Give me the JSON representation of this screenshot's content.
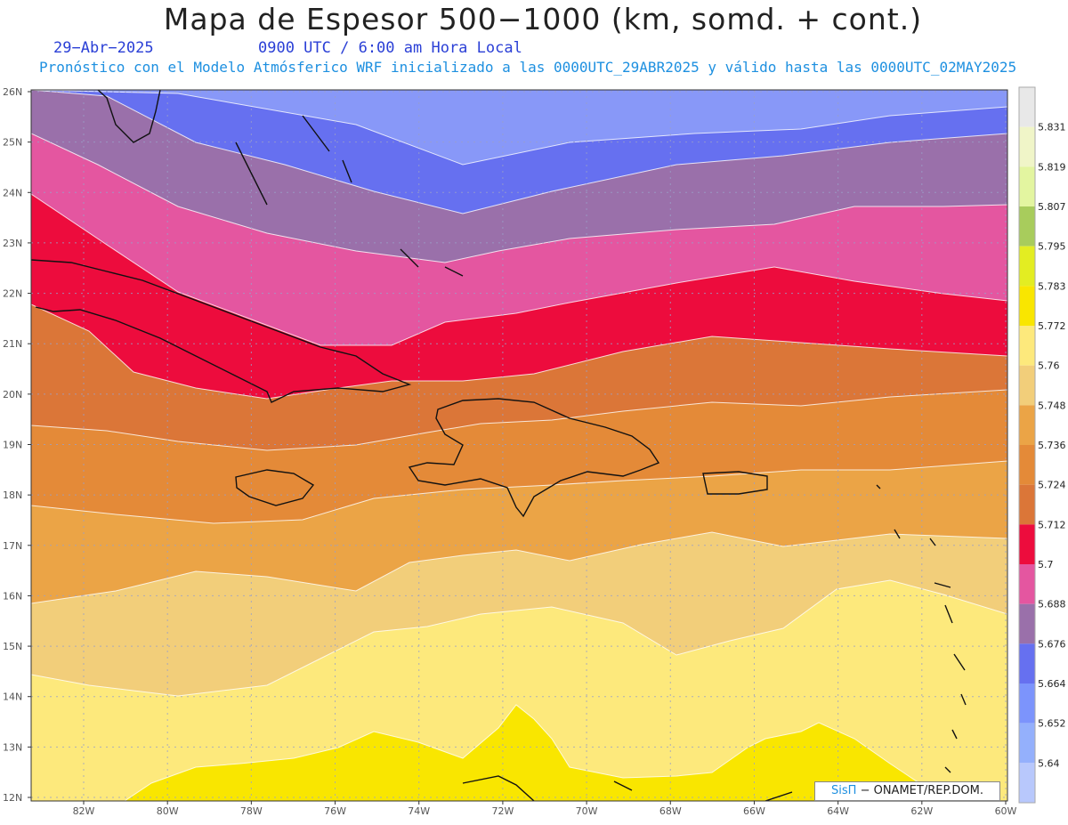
{
  "header": {
    "title": "Mapa de Espesor 500−1000 (km, somd. + cont.)",
    "date": "29−Abr−2025",
    "time": "0900 UTC / 6:00 am Hora Local",
    "subtitle": "Pronóstico con el Modelo Atmósferico WRF inicializado a las 0000UTC_29ABR2025 y válido hasta las  0000UTC_02MAY2025"
  },
  "axes": {
    "lat_labels": [
      "26N",
      "25N",
      "24N",
      "23N",
      "22N",
      "21N",
      "20N",
      "19N",
      "18N",
      "17N",
      "16N",
      "15N",
      "14N",
      "13N",
      "12N"
    ],
    "lon_labels": [
      "82W",
      "80W",
      "78W",
      "76W",
      "74W",
      "72W",
      "70W",
      "68W",
      "66W",
      "64W",
      "62W",
      "60W"
    ]
  },
  "colorbar": {
    "labels": [
      "5.831",
      "5.819",
      "5.807",
      "5.795",
      "5.783",
      "5.772",
      "5.76",
      "5.748",
      "5.736",
      "5.724",
      "5.712",
      "5.7",
      "5.688",
      "5.676",
      "5.664",
      "5.652",
      "5.64"
    ],
    "colors": [
      "#e8e8e8",
      "#f0f5c8",
      "#e3f5a0",
      "#a8cc5c",
      "#e3ed22",
      "#f9e600",
      "#fde97c",
      "#f2ce7a",
      "#eba446",
      "#e48a38",
      "#db7638",
      "#ed0c3d",
      "#e456a0",
      "#9a70aa",
      "#6670f0",
      "#7c94fc",
      "#94b0fc",
      "#b8c8fc"
    ]
  },
  "bands": {
    "colors": [
      "#8898f8",
      "#6670f0",
      "#9a70aa",
      "#e456a0",
      "#ed0c3d",
      "#db7638",
      "#e48a38",
      "#eba446",
      "#f2ce7a",
      "#fde97c",
      "#f9e600"
    ]
  },
  "credit": {
    "brand": "SisΠ",
    "text": " − ONAMET/REP.DOM."
  }
}
